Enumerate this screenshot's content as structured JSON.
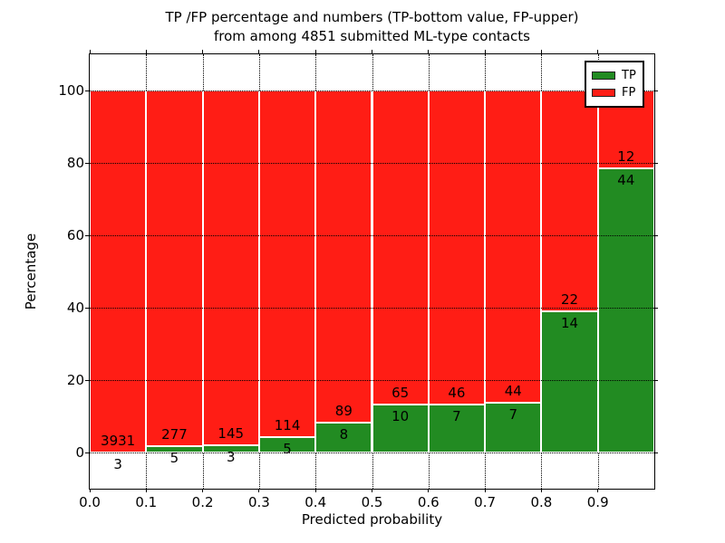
{
  "chart_data": {
    "type": "bar",
    "subtype": "stacked-percentage",
    "title_line1": "TP /FP percentage and numbers (TP-bottom value, FP-upper)",
    "title_line2": "from among 4851 submitted ML-type contacts",
    "xlabel": "Predicted probability",
    "ylabel": "Percentage",
    "total_contacts": 4851,
    "xlim": [
      0.0,
      1.0
    ],
    "ylim": [
      -10,
      110
    ],
    "grid": "dotted",
    "legend_position": "upper right",
    "xticks": [
      {
        "value": 0.0,
        "label": "0.0"
      },
      {
        "value": 0.1,
        "label": "0.1"
      },
      {
        "value": 0.2,
        "label": "0.2"
      },
      {
        "value": 0.3,
        "label": "0.3"
      },
      {
        "value": 0.4,
        "label": "0.4"
      },
      {
        "value": 0.5,
        "label": "0.5"
      },
      {
        "value": 0.6,
        "label": "0.6"
      },
      {
        "value": 0.7,
        "label": "0.7"
      },
      {
        "value": 0.8,
        "label": "0.8"
      },
      {
        "value": 0.9,
        "label": "0.9"
      }
    ],
    "yticks": [
      {
        "value": 0,
        "label": "0"
      },
      {
        "value": 20,
        "label": "20"
      },
      {
        "value": 40,
        "label": "40"
      },
      {
        "value": 60,
        "label": "60"
      },
      {
        "value": 80,
        "label": "80"
      },
      {
        "value": 100,
        "label": "100"
      }
    ],
    "bins": [
      {
        "range": "0.0-0.1",
        "x_start": 0.0,
        "tp": 3,
        "fp": 3931,
        "tp_pct": 0.08
      },
      {
        "range": "0.1-0.2",
        "x_start": 0.1,
        "tp": 5,
        "fp": 277,
        "tp_pct": 1.77
      },
      {
        "range": "0.2-0.3",
        "x_start": 0.2,
        "tp": 3,
        "fp": 145,
        "tp_pct": 2.03
      },
      {
        "range": "0.3-0.4",
        "x_start": 0.3,
        "tp": 5,
        "fp": 114,
        "tp_pct": 4.2
      },
      {
        "range": "0.4-0.5",
        "x_start": 0.4,
        "tp": 8,
        "fp": 89,
        "tp_pct": 8.25
      },
      {
        "range": "0.5-0.6",
        "x_start": 0.5,
        "tp": 10,
        "fp": 65,
        "tp_pct": 13.33
      },
      {
        "range": "0.6-0.7",
        "x_start": 0.6,
        "tp": 7,
        "fp": 46,
        "tp_pct": 13.21
      },
      {
        "range": "0.7-0.8",
        "x_start": 0.7,
        "tp": 7,
        "fp": 44,
        "tp_pct": 13.73
      },
      {
        "range": "0.8-0.9",
        "x_start": 0.8,
        "tp": 14,
        "fp": 22,
        "tp_pct": 38.89
      },
      {
        "range": "0.9-1.0",
        "x_start": 0.9,
        "tp": 44,
        "fp": 12,
        "tp_pct": 78.57
      }
    ],
    "legend": [
      {
        "label": "TP",
        "color": "#228b22"
      },
      {
        "label": "FP",
        "color": "#ff1d15"
      }
    ]
  }
}
